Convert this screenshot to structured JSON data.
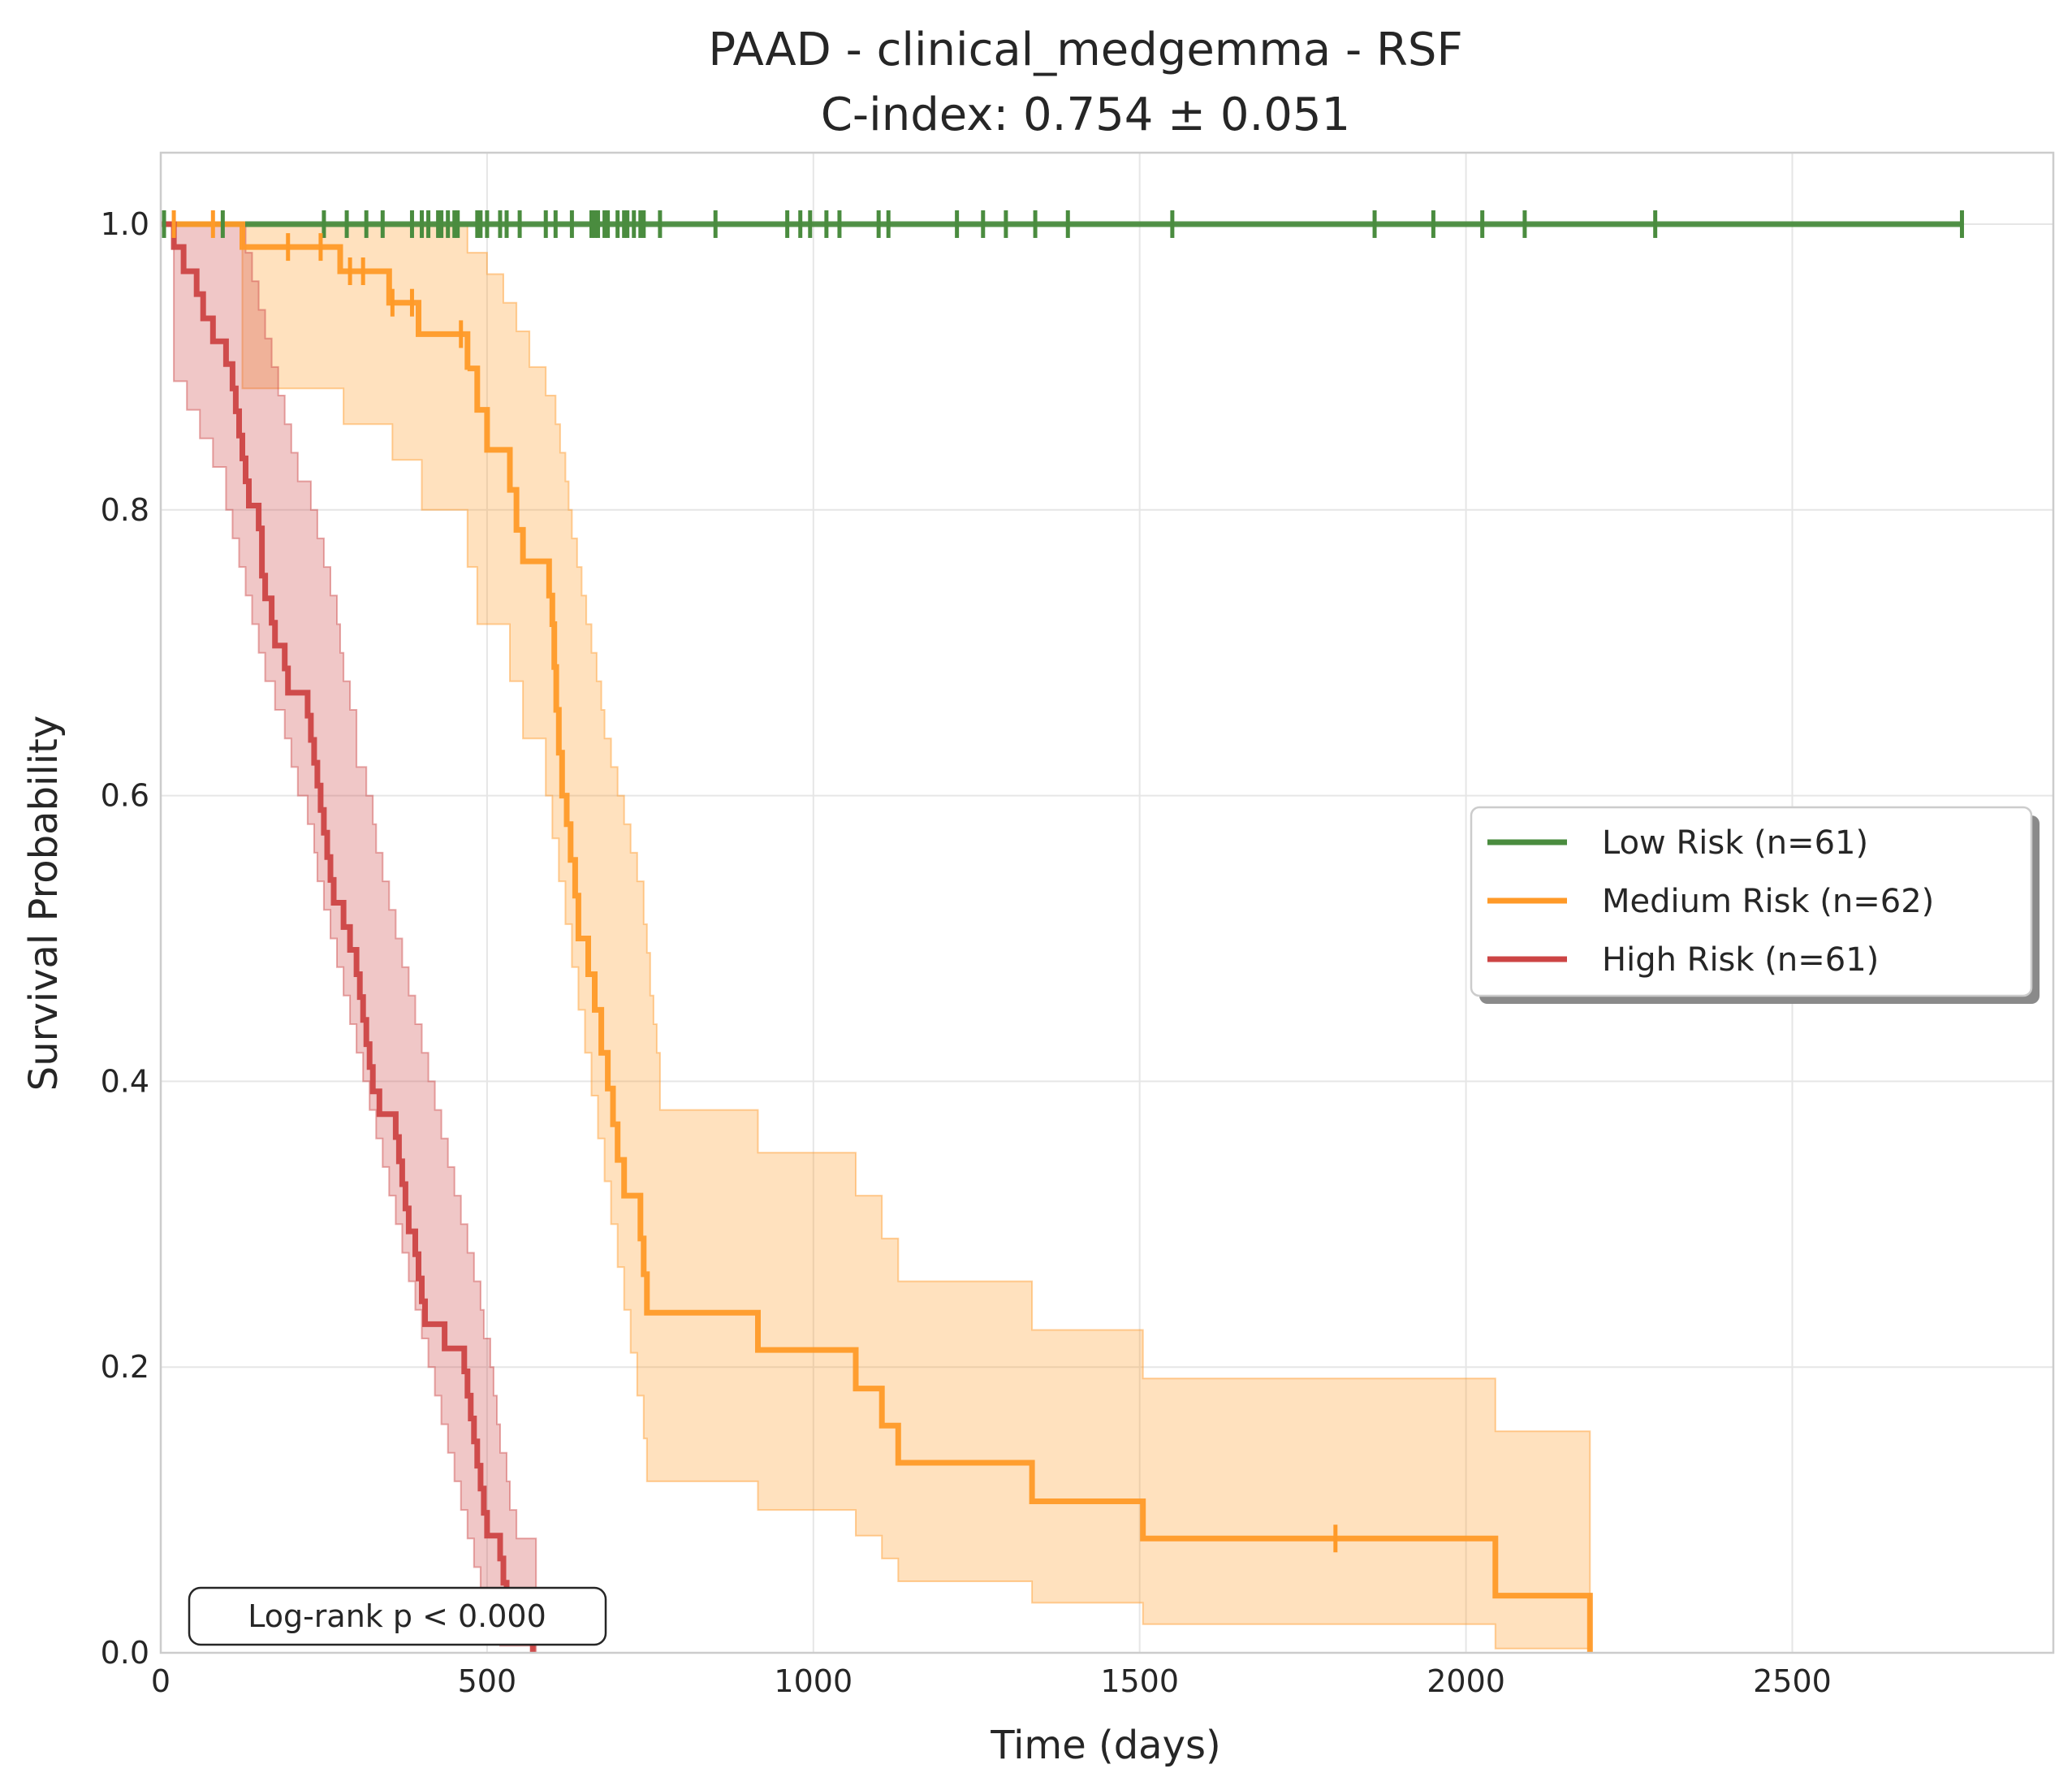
{
  "chart_data": {
    "type": "line",
    "subtype": "kaplan-meier",
    "title": "PAAD - clinical_medgemma - RSF",
    "subtitle": "C-index: 0.754 ± 0.051",
    "xlabel": "Time (days)",
    "ylabel": "Survival Probability",
    "xlim": [
      0,
      2900
    ],
    "ylim": [
      0,
      1.05
    ],
    "xticks": [
      0,
      500,
      1000,
      1500,
      2000,
      2500
    ],
    "yticks": [
      0.0,
      0.2,
      0.4,
      0.6,
      0.8,
      1.0
    ],
    "xtick_labels": [
      "0",
      "500",
      "1000",
      "1500",
      "2000",
      "2500"
    ],
    "ytick_labels": [
      "0.0",
      "0.2",
      "0.4",
      "0.6",
      "0.8",
      "1.0"
    ],
    "grid": true,
    "legend_position": "center-right",
    "annotation": "Log-rank p < 0.000",
    "series": [
      {
        "name": "Low Risk (n=61)",
        "color": "#4a8c3f",
        "steps": [
          [
            0,
            1.0
          ],
          [
            2760,
            1.0
          ]
        ],
        "censor_times": [
          5,
          95,
          250,
          285,
          315,
          340,
          385,
          400,
          410,
          425,
          430,
          440,
          450,
          455,
          485,
          490,
          500,
          520,
          530,
          550,
          590,
          605,
          630,
          660,
          665,
          670,
          680,
          685,
          700,
          710,
          715,
          725,
          735,
          740,
          765,
          850,
          960,
          980,
          995,
          1020,
          1040,
          1100,
          1115,
          1220,
          1260,
          1295,
          1340,
          1390,
          1550,
          1860,
          1950,
          2025,
          2090,
          2290,
          2760
        ],
        "ci_lower": [
          [
            0,
            1.0
          ],
          [
            2760,
            1.0
          ]
        ],
        "ci_upper": [
          [
            0,
            1.0
          ],
          [
            2760,
            1.0
          ]
        ]
      },
      {
        "name": "Medium Risk (n=62)",
        "color": "#ff9a28",
        "steps": [
          [
            0,
            1.0
          ],
          [
            125,
            0.984
          ],
          [
            275,
            0.967
          ],
          [
            350,
            0.945
          ],
          [
            395,
            0.923
          ],
          [
            470,
            0.898
          ],
          [
            470,
            0.899
          ],
          [
            485,
            0.87
          ],
          [
            500,
            0.842
          ],
          [
            515,
            0.842
          ],
          [
            535,
            0.814
          ],
          [
            545,
            0.786
          ],
          [
            555,
            0.764
          ],
          [
            585,
            0.764
          ],
          [
            595,
            0.74
          ],
          [
            600,
            0.72
          ],
          [
            603,
            0.69
          ],
          [
            606,
            0.66
          ],
          [
            610,
            0.63
          ],
          [
            615,
            0.6
          ],
          [
            622,
            0.58
          ],
          [
            628,
            0.555
          ],
          [
            635,
            0.53
          ],
          [
            640,
            0.5
          ],
          [
            655,
            0.475
          ],
          [
            665,
            0.45
          ],
          [
            675,
            0.42
          ],
          [
            685,
            0.395
          ],
          [
            693,
            0.37
          ],
          [
            700,
            0.345
          ],
          [
            710,
            0.32
          ],
          [
            735,
            0.29
          ],
          [
            740,
            0.265
          ],
          [
            745,
            0.238
          ],
          [
            915,
            0.212
          ],
          [
            1065,
            0.185
          ],
          [
            1105,
            0.159
          ],
          [
            1130,
            0.133
          ],
          [
            1335,
            0.106
          ],
          [
            1505,
            0.08
          ],
          [
            2045,
            0.04
          ],
          [
            2190,
            0.0
          ]
        ],
        "censor_times": [
          20,
          80,
          195,
          245,
          290,
          310,
          355,
          385,
          460,
          1800
        ],
        "ci_lower": [
          [
            0,
            1.0
          ],
          [
            125,
            0.885
          ],
          [
            280,
            0.86
          ],
          [
            355,
            0.835
          ],
          [
            400,
            0.8
          ],
          [
            470,
            0.76
          ],
          [
            485,
            0.72
          ],
          [
            535,
            0.68
          ],
          [
            555,
            0.64
          ],
          [
            590,
            0.6
          ],
          [
            600,
            0.57
          ],
          [
            610,
            0.54
          ],
          [
            620,
            0.51
          ],
          [
            630,
            0.48
          ],
          [
            640,
            0.45
          ],
          [
            650,
            0.42
          ],
          [
            660,
            0.39
          ],
          [
            670,
            0.36
          ],
          [
            680,
            0.33
          ],
          [
            690,
            0.3
          ],
          [
            700,
            0.27
          ],
          [
            710,
            0.24
          ],
          [
            720,
            0.21
          ],
          [
            730,
            0.18
          ],
          [
            740,
            0.15
          ],
          [
            745,
            0.12
          ],
          [
            915,
            0.1
          ],
          [
            1065,
            0.082
          ],
          [
            1105,
            0.066
          ],
          [
            1130,
            0.05
          ],
          [
            1335,
            0.035
          ],
          [
            1505,
            0.02
          ],
          [
            2045,
            0.003
          ],
          [
            2190,
            0.0
          ]
        ],
        "ci_upper": [
          [
            0,
            1.0
          ],
          [
            125,
            1.0
          ],
          [
            355,
            1.0
          ],
          [
            470,
            0.98
          ],
          [
            500,
            0.965
          ],
          [
            525,
            0.945
          ],
          [
            545,
            0.925
          ],
          [
            565,
            0.9
          ],
          [
            590,
            0.88
          ],
          [
            605,
            0.86
          ],
          [
            612,
            0.84
          ],
          [
            620,
            0.82
          ],
          [
            625,
            0.8
          ],
          [
            630,
            0.78
          ],
          [
            638,
            0.76
          ],
          [
            645,
            0.74
          ],
          [
            652,
            0.72
          ],
          [
            660,
            0.7
          ],
          [
            668,
            0.68
          ],
          [
            675,
            0.66
          ],
          [
            680,
            0.64
          ],
          [
            690,
            0.62
          ],
          [
            700,
            0.6
          ],
          [
            710,
            0.58
          ],
          [
            720,
            0.56
          ],
          [
            730,
            0.54
          ],
          [
            740,
            0.51
          ],
          [
            745,
            0.49
          ],
          [
            750,
            0.46
          ],
          [
            755,
            0.44
          ],
          [
            760,
            0.42
          ],
          [
            765,
            0.38
          ],
          [
            915,
            0.35
          ],
          [
            1065,
            0.32
          ],
          [
            1105,
            0.29
          ],
          [
            1130,
            0.26
          ],
          [
            1335,
            0.226
          ],
          [
            1505,
            0.192
          ],
          [
            2045,
            0.155
          ],
          [
            2190,
            0.155
          ]
        ]
      },
      {
        "name": "High Risk (n=61)",
        "color": "#cc4444",
        "steps": [
          [
            0,
            1.0
          ],
          [
            20,
            0.984
          ],
          [
            35,
            0.967
          ],
          [
            55,
            0.951
          ],
          [
            65,
            0.934
          ],
          [
            80,
            0.918
          ],
          [
            100,
            0.902
          ],
          [
            110,
            0.885
          ],
          [
            115,
            0.869
          ],
          [
            120,
            0.852
          ],
          [
            125,
            0.836
          ],
          [
            130,
            0.82
          ],
          [
            135,
            0.803
          ],
          [
            150,
            0.787
          ],
          [
            155,
            0.754
          ],
          [
            160,
            0.738
          ],
          [
            170,
            0.721
          ],
          [
            175,
            0.705
          ],
          [
            190,
            0.689
          ],
          [
            195,
            0.672
          ],
          [
            225,
            0.656
          ],
          [
            230,
            0.639
          ],
          [
            235,
            0.623
          ],
          [
            240,
            0.607
          ],
          [
            245,
            0.59
          ],
          [
            250,
            0.574
          ],
          [
            255,
            0.557
          ],
          [
            260,
            0.541
          ],
          [
            265,
            0.525
          ],
          [
            280,
            0.508
          ],
          [
            290,
            0.492
          ],
          [
            300,
            0.475
          ],
          [
            305,
            0.459
          ],
          [
            310,
            0.443
          ],
          [
            315,
            0.426
          ],
          [
            320,
            0.41
          ],
          [
            325,
            0.393
          ],
          [
            335,
            0.377
          ],
          [
            360,
            0.361
          ],
          [
            365,
            0.344
          ],
          [
            370,
            0.328
          ],
          [
            375,
            0.311
          ],
          [
            380,
            0.295
          ],
          [
            390,
            0.279
          ],
          [
            395,
            0.262
          ],
          [
            400,
            0.246
          ],
          [
            405,
            0.23
          ],
          [
            435,
            0.213
          ],
          [
            465,
            0.197
          ],
          [
            470,
            0.18
          ],
          [
            475,
            0.164
          ],
          [
            480,
            0.148
          ],
          [
            485,
            0.131
          ],
          [
            490,
            0.115
          ],
          [
            495,
            0.098
          ],
          [
            500,
            0.082
          ],
          [
            520,
            0.066
          ],
          [
            525,
            0.049
          ],
          [
            530,
            0.033
          ],
          [
            545,
            0.016
          ],
          [
            570,
            0.0
          ]
        ],
        "censor_times": [],
        "ci_lower": [
          [
            0,
            1.0
          ],
          [
            20,
            0.89
          ],
          [
            40,
            0.87
          ],
          [
            60,
            0.85
          ],
          [
            80,
            0.83
          ],
          [
            100,
            0.8
          ],
          [
            110,
            0.78
          ],
          [
            120,
            0.76
          ],
          [
            130,
            0.74
          ],
          [
            140,
            0.72
          ],
          [
            150,
            0.7
          ],
          [
            160,
            0.68
          ],
          [
            175,
            0.66
          ],
          [
            190,
            0.64
          ],
          [
            200,
            0.62
          ],
          [
            210,
            0.6
          ],
          [
            225,
            0.58
          ],
          [
            235,
            0.56
          ],
          [
            240,
            0.54
          ],
          [
            250,
            0.52
          ],
          [
            260,
            0.5
          ],
          [
            270,
            0.48
          ],
          [
            280,
            0.46
          ],
          [
            290,
            0.44
          ],
          [
            300,
            0.42
          ],
          [
            310,
            0.4
          ],
          [
            320,
            0.38
          ],
          [
            330,
            0.36
          ],
          [
            340,
            0.34
          ],
          [
            350,
            0.32
          ],
          [
            360,
            0.3
          ],
          [
            370,
            0.28
          ],
          [
            380,
            0.26
          ],
          [
            390,
            0.24
          ],
          [
            400,
            0.22
          ],
          [
            410,
            0.2
          ],
          [
            420,
            0.18
          ],
          [
            430,
            0.16
          ],
          [
            440,
            0.14
          ],
          [
            450,
            0.12
          ],
          [
            460,
            0.1
          ],
          [
            470,
            0.08
          ],
          [
            480,
            0.06
          ],
          [
            490,
            0.04
          ],
          [
            500,
            0.02
          ],
          [
            520,
            0.005
          ],
          [
            570,
            0.0
          ]
        ],
        "ci_upper": [
          [
            0,
            1.0
          ],
          [
            120,
            1.0
          ],
          [
            130,
            0.98
          ],
          [
            140,
            0.96
          ],
          [
            150,
            0.94
          ],
          [
            160,
            0.92
          ],
          [
            170,
            0.9
          ],
          [
            180,
            0.88
          ],
          [
            190,
            0.86
          ],
          [
            200,
            0.84
          ],
          [
            210,
            0.82
          ],
          [
            230,
            0.8
          ],
          [
            240,
            0.78
          ],
          [
            250,
            0.76
          ],
          [
            260,
            0.74
          ],
          [
            270,
            0.72
          ],
          [
            275,
            0.7
          ],
          [
            280,
            0.68
          ],
          [
            290,
            0.66
          ],
          [
            300,
            0.62
          ],
          [
            315,
            0.6
          ],
          [
            325,
            0.58
          ],
          [
            330,
            0.56
          ],
          [
            340,
            0.54
          ],
          [
            350,
            0.52
          ],
          [
            360,
            0.5
          ],
          [
            370,
            0.48
          ],
          [
            380,
            0.46
          ],
          [
            390,
            0.44
          ],
          [
            400,
            0.42
          ],
          [
            410,
            0.4
          ],
          [
            420,
            0.38
          ],
          [
            430,
            0.36
          ],
          [
            440,
            0.34
          ],
          [
            450,
            0.32
          ],
          [
            460,
            0.3
          ],
          [
            470,
            0.28
          ],
          [
            480,
            0.26
          ],
          [
            490,
            0.24
          ],
          [
            495,
            0.22
          ],
          [
            505,
            0.2
          ],
          [
            510,
            0.18
          ],
          [
            515,
            0.16
          ],
          [
            520,
            0.14
          ],
          [
            530,
            0.12
          ],
          [
            535,
            0.1
          ],
          [
            545,
            0.08
          ],
          [
            570,
            0.08
          ],
          [
            575,
            0.0
          ]
        ]
      }
    ]
  }
}
